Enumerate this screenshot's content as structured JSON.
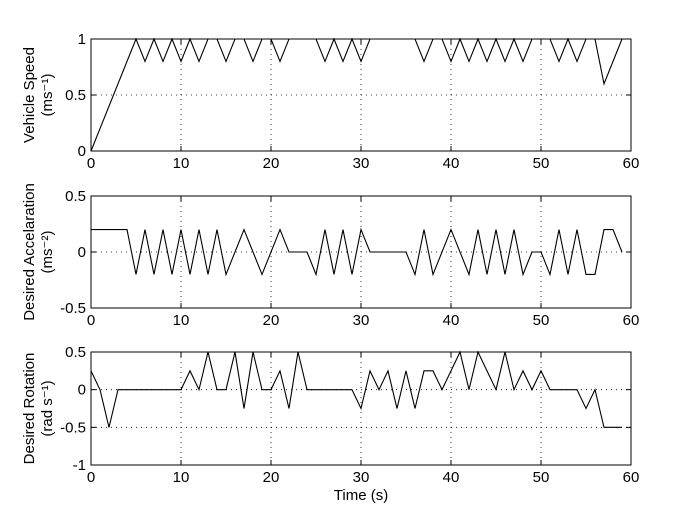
{
  "chart_data": [
    {
      "type": "line",
      "ylabel": [
        "Vehicle Speed",
        "(ms⁻¹)"
      ],
      "x": [
        0,
        5,
        6,
        7,
        8,
        9,
        10,
        11,
        12,
        13,
        14,
        15,
        16,
        17,
        18,
        19,
        20,
        21,
        22,
        25,
        26,
        27,
        28,
        29,
        30,
        31,
        36,
        37,
        38,
        39,
        40,
        41,
        42,
        43,
        44,
        45,
        46,
        47,
        48,
        49,
        51,
        52,
        53,
        54,
        55,
        56,
        57,
        59
      ],
      "series": [
        {
          "color": "#000000",
          "values": [
            0,
            1,
            0.8,
            1,
            0.8,
            1,
            0.8,
            1,
            0.8,
            1,
            1,
            0.8,
            1,
            1,
            0.8,
            1,
            1,
            0.8,
            1,
            1,
            0.8,
            1,
            0.8,
            1,
            0.8,
            1,
            1,
            0.8,
            1,
            1,
            0.8,
            1,
            0.8,
            1,
            0.8,
            1,
            0.8,
            1,
            0.8,
            1,
            1,
            0.8,
            1,
            0.8,
            1,
            1,
            0.6,
            1
          ]
        }
      ],
      "xlim": [
        0,
        60
      ],
      "ylim": [
        0,
        1
      ],
      "xticks": [
        0,
        10,
        20,
        30,
        40,
        50,
        60
      ],
      "yticks": [
        0,
        0.5,
        1
      ],
      "grid": true
    },
    {
      "type": "line",
      "ylabel": [
        "Desired Accelaration",
        "(ms⁻²)"
      ],
      "x": [
        0,
        4,
        5,
        6,
        7,
        8,
        9,
        10,
        11,
        12,
        13,
        14,
        15,
        17,
        19,
        21,
        22,
        24,
        25,
        26,
        27,
        28,
        29,
        30,
        31,
        35,
        36,
        37,
        38,
        40,
        42,
        43,
        44,
        45,
        46,
        47,
        48,
        49,
        50,
        51,
        52,
        53,
        54,
        55,
        56,
        57,
        58,
        59
      ],
      "series": [
        {
          "color": "#000000",
          "values": [
            0.2,
            0.2,
            -0.2,
            0.2,
            -0.2,
            0.2,
            -0.2,
            0.2,
            -0.2,
            0.2,
            -0.2,
            0.2,
            -0.2,
            0.2,
            -0.2,
            0.2,
            0,
            0,
            -0.2,
            0.2,
            -0.2,
            0.2,
            -0.2,
            0.2,
            0,
            0,
            -0.2,
            0.2,
            -0.2,
            0.2,
            -0.2,
            0.2,
            -0.2,
            0.2,
            -0.2,
            0.2,
            -0.2,
            0,
            0,
            -0.2,
            0.2,
            -0.2,
            0.2,
            -0.2,
            -0.2,
            0.2,
            0.2,
            0
          ]
        }
      ],
      "xlim": [
        0,
        60
      ],
      "ylim": [
        -0.5,
        0.5
      ],
      "xticks": [
        0,
        10,
        20,
        30,
        40,
        50,
        60
      ],
      "yticks": [
        -0.5,
        0,
        0.5
      ],
      "grid": true
    },
    {
      "type": "line",
      "ylabel": [
        "Desired Rotation",
        "(rad s⁻¹)"
      ],
      "xlabel": "Time (s)",
      "x": [
        0,
        1,
        2,
        3,
        10,
        11,
        12,
        13,
        14,
        15,
        16,
        17,
        18,
        19,
        20,
        21,
        22,
        23,
        24,
        29,
        30,
        31,
        32,
        33,
        34,
        35,
        36,
        37,
        38,
        39,
        40,
        41,
        42,
        43,
        44,
        45,
        46,
        47,
        48,
        49,
        50,
        51,
        54,
        55,
        56,
        57,
        59
      ],
      "series": [
        {
          "color": "#000000",
          "values": [
            0.25,
            0,
            -0.5,
            0,
            0,
            0.25,
            0,
            0.5,
            0,
            0,
            0.5,
            -0.25,
            0.5,
            0,
            0,
            0.25,
            -0.25,
            0.5,
            0,
            0,
            -0.25,
            0.25,
            0,
            0.25,
            -0.25,
            0.25,
            -0.25,
            0.25,
            0.25,
            0,
            0.25,
            0.5,
            0,
            0.5,
            0.25,
            0,
            0.5,
            0,
            0.25,
            0,
            0.25,
            0,
            0,
            -0.25,
            0,
            -0.5,
            -0.5
          ]
        }
      ],
      "xlim": [
        0,
        60
      ],
      "ylim": [
        -1,
        0.5
      ],
      "xticks": [
        0,
        10,
        20,
        30,
        40,
        50,
        60
      ],
      "yticks": [
        -1,
        -0.5,
        0,
        0.5
      ],
      "grid": true
    }
  ]
}
